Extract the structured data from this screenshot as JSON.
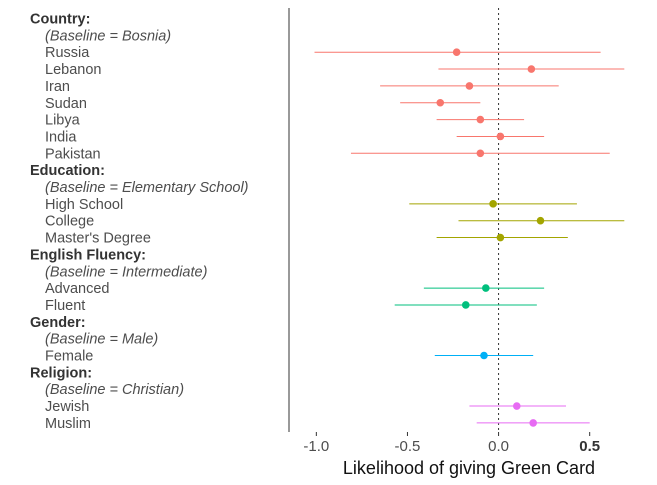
{
  "chart_data": {
    "type": "scatter",
    "subtype": "coefficient-plot",
    "title": "",
    "xlabel": "Likelihood of giving Green Card",
    "ylabel": "",
    "xlim": [
      -1.15,
      0.82
    ],
    "x_ticks": [
      {
        "value": -1.0,
        "label": "-1.0",
        "bold": false
      },
      {
        "value": -0.5,
        "label": "-0.5",
        "bold": false
      },
      {
        "value": 0.0,
        "label": "0.0",
        "bold": false
      },
      {
        "value": 0.5,
        "label": "0.5",
        "bold": true
      }
    ],
    "reference_line": {
      "x": 0,
      "style": "dotted"
    },
    "grid": false,
    "legend": "none",
    "rows": [
      {
        "label": "Country:",
        "kind": "heading"
      },
      {
        "label": "(Baseline = Bosnia)",
        "kind": "baseline"
      },
      {
        "label": "Russia",
        "kind": "item",
        "group": "Country",
        "estimate": -0.23,
        "low": -1.01,
        "high": 0.56
      },
      {
        "label": "Lebanon",
        "kind": "item",
        "group": "Country",
        "estimate": 0.18,
        "low": -0.33,
        "high": 0.69
      },
      {
        "label": "Iran",
        "kind": "item",
        "group": "Country",
        "estimate": -0.16,
        "low": -0.65,
        "high": 0.33
      },
      {
        "label": "Sudan",
        "kind": "item",
        "group": "Country",
        "estimate": -0.32,
        "low": -0.54,
        "high": -0.1
      },
      {
        "label": "Libya",
        "kind": "item",
        "group": "Country",
        "estimate": -0.1,
        "low": -0.34,
        "high": 0.14
      },
      {
        "label": "India",
        "kind": "item",
        "group": "Country",
        "estimate": 0.01,
        "low": -0.23,
        "high": 0.25
      },
      {
        "label": "Pakistan",
        "kind": "item",
        "group": "Country",
        "estimate": -0.1,
        "low": -0.81,
        "high": 0.61
      },
      {
        "label": "Education:",
        "kind": "heading"
      },
      {
        "label": "(Baseline = Elementary School)",
        "kind": "baseline"
      },
      {
        "label": "High School",
        "kind": "item",
        "group": "Education",
        "estimate": -0.03,
        "low": -0.49,
        "high": 0.43
      },
      {
        "label": "College",
        "kind": "item",
        "group": "Education",
        "estimate": 0.23,
        "low": -0.22,
        "high": 0.69
      },
      {
        "label": "Master's Degree",
        "kind": "item",
        "group": "Education",
        "estimate": 0.01,
        "low": -0.34,
        "high": 0.38
      },
      {
        "label": "English Fluency:",
        "kind": "heading"
      },
      {
        "label": "(Baseline = Intermediate)",
        "kind": "baseline"
      },
      {
        "label": "Advanced",
        "kind": "item",
        "group": "English Fluency",
        "estimate": -0.07,
        "low": -0.41,
        "high": 0.25
      },
      {
        "label": "Fluent",
        "kind": "item",
        "group": "English Fluency",
        "estimate": -0.18,
        "low": -0.57,
        "high": 0.21
      },
      {
        "label": "Gender:",
        "kind": "heading"
      },
      {
        "label": "(Baseline = Male)",
        "kind": "baseline"
      },
      {
        "label": "Female",
        "kind": "item",
        "group": "Gender",
        "estimate": -0.08,
        "low": -0.35,
        "high": 0.19
      },
      {
        "label": "Religion:",
        "kind": "heading"
      },
      {
        "label": "(Baseline = Christian)",
        "kind": "baseline"
      },
      {
        "label": "Jewish",
        "kind": "item",
        "group": "Religion",
        "estimate": 0.1,
        "low": -0.16,
        "high": 0.37
      },
      {
        "label": "Muslim",
        "kind": "item",
        "group": "Religion",
        "estimate": 0.19,
        "low": -0.12,
        "high": 0.5
      }
    ],
    "group_colors": {
      "Country": "#F8766D",
      "Education": "#A3A500",
      "English Fluency": "#00BF7D",
      "Gender": "#00B0F6",
      "Religion": "#E76BF3"
    }
  }
}
